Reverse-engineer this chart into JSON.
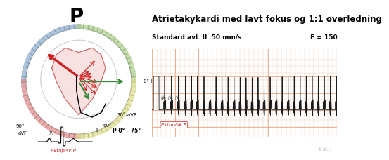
{
  "title": "Atrietakykardi med lavt fokus og 1:1 overledning",
  "subtitle": "Standard avl. II  50 mm/s",
  "f_label": "F = 150",
  "p_axis_label": "P 0° - 75°",
  "ektopisk_label": "Ektopisk P",
  "p_big_label": "P",
  "bg_color": "#ffffff",
  "ecg_bg": "#fdf0e8",
  "ecg_grid_color": "#e8b090",
  "ecg_line_color": "#1a1a1a",
  "left_panel_labels": {
    "zero_I": "0° I",
    "thirty_aVR": "30°-aVR",
    "sixty": "60°",
    "II": "II",
    "ninety": "90°",
    "aVF": "aVF"
  },
  "arrow_green": "#3a8a3a",
  "arrow_red": "#cc2222"
}
